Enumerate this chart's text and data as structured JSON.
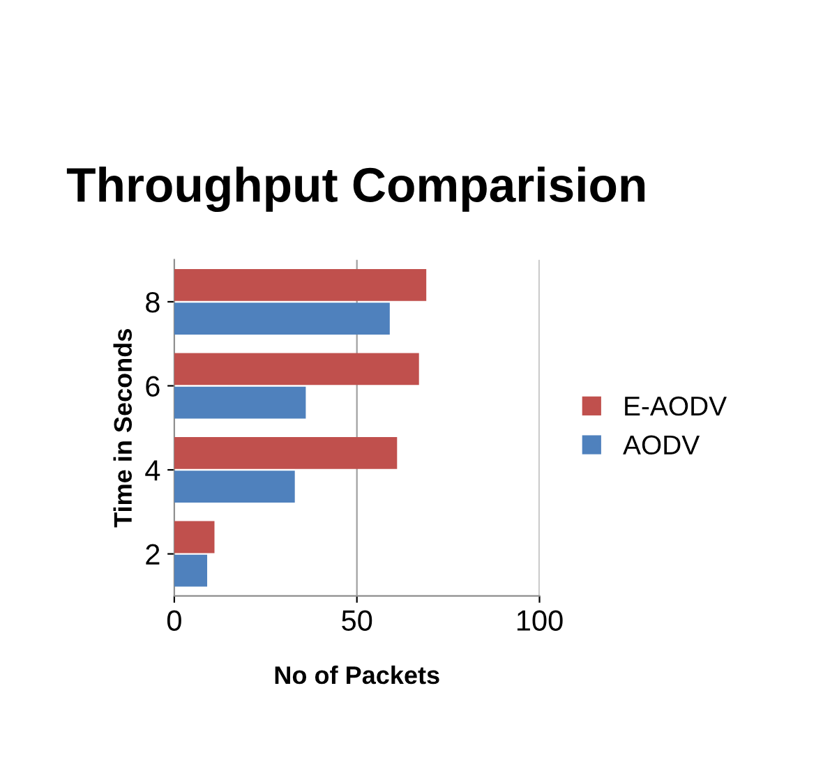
{
  "chart_data": {
    "type": "bar",
    "orientation": "horizontal",
    "title": "Throughput Comparision",
    "xlabel": "No of Packets",
    "ylabel": "Time in Seconds",
    "categories": [
      "8",
      "6",
      "4",
      "2"
    ],
    "series": [
      {
        "name": "E-AODV",
        "color": "#c0504d",
        "values": [
          69,
          67,
          61,
          11
        ]
      },
      {
        "name": "AODV",
        "color": "#4f81bd",
        "values": [
          59,
          36,
          33,
          9
        ]
      }
    ],
    "xlim": [
      0,
      100
    ],
    "xticks": [
      0,
      50,
      100
    ],
    "grid": "x",
    "legend": "right"
  }
}
